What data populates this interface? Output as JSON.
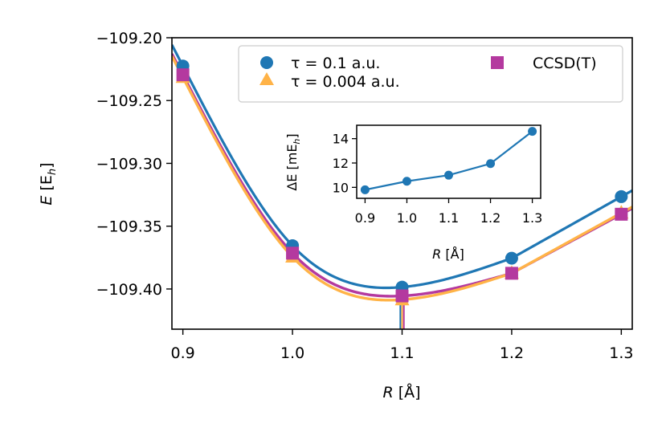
{
  "chart_data": [
    {
      "type": "line",
      "title": "",
      "xlabel_prefix": "R",
      "xlabel_unit": "[Å]",
      "ylabel_prefix": "E",
      "ylabel_unit_open": "[E",
      "ylabel_unit_sub": "h",
      "ylabel_unit_close": "]",
      "xlim": [
        0.89,
        1.31
      ],
      "ylim": [
        -109.432,
        -109.2
      ],
      "xticks": [
        0.9,
        1.0,
        1.1,
        1.2,
        1.3
      ],
      "xtick_labels": [
        "0.9",
        "1.0",
        "1.1",
        "1.2",
        "1.3"
      ],
      "yticks": [
        -109.2,
        -109.25,
        -109.3,
        -109.35,
        -109.4
      ],
      "ytick_labels": [
        "−109.20",
        "−109.25",
        "−109.30",
        "−109.35",
        "−109.40"
      ],
      "equilibrium_marker_x": 1.1,
      "series": [
        {
          "name": "τ = 0.1 a.u.",
          "legend_label": "τ = 0.1 a.u.",
          "marker": "circle",
          "color": "#1f77b4",
          "x": [
            0.9,
            1.0,
            1.1,
            1.2,
            1.3
          ],
          "y": [
            -109.2225,
            -109.3655,
            -109.3985,
            -109.3755,
            -109.3265
          ]
        },
        {
          "name": "τ = 0.004 a.u.",
          "legend_label": "τ = 0.004 a.u.",
          "marker": "triangle",
          "color": "#ffb347",
          "x": [
            0.9,
            1.0,
            1.1,
            1.2,
            1.3
          ],
          "y": [
            -109.2315,
            -109.3745,
            -109.4085,
            -109.3875,
            -109.3395
          ]
        },
        {
          "name": "CCSD(T)",
          "legend_label": "CCSD(T)",
          "marker": "square",
          "color": "#b4399f",
          "x": [
            0.9,
            1.0,
            1.1,
            1.2,
            1.3
          ],
          "y": [
            -109.2295,
            -109.3715,
            -109.4055,
            -109.3875,
            -109.3405
          ]
        }
      ],
      "legend_position": "top-right"
    },
    {
      "type": "line",
      "title": "",
      "inset": true,
      "xlabel_prefix": "R",
      "xlabel_unit": "[Å]",
      "ylabel_prefix": "ΔE",
      "ylabel_unit_open": "[mE",
      "ylabel_unit_sub": "h",
      "ylabel_unit_close": "]",
      "xlim": [
        0.88,
        1.32
      ],
      "ylim": [
        9.1,
        15.1
      ],
      "xticks": [
        0.9,
        1.0,
        1.1,
        1.2,
        1.3
      ],
      "xtick_labels": [
        "0.9",
        "1.0",
        "1.1",
        "1.2",
        "1.3"
      ],
      "yticks": [
        10,
        12,
        14
      ],
      "ytick_labels": [
        "10",
        "12",
        "14"
      ],
      "series": [
        {
          "name": "ΔE",
          "color": "#1f77b4",
          "x": [
            0.9,
            1.0,
            1.1,
            1.2,
            1.3
          ],
          "y": [
            9.8,
            10.5,
            11.0,
            11.95,
            14.6
          ]
        }
      ]
    }
  ]
}
